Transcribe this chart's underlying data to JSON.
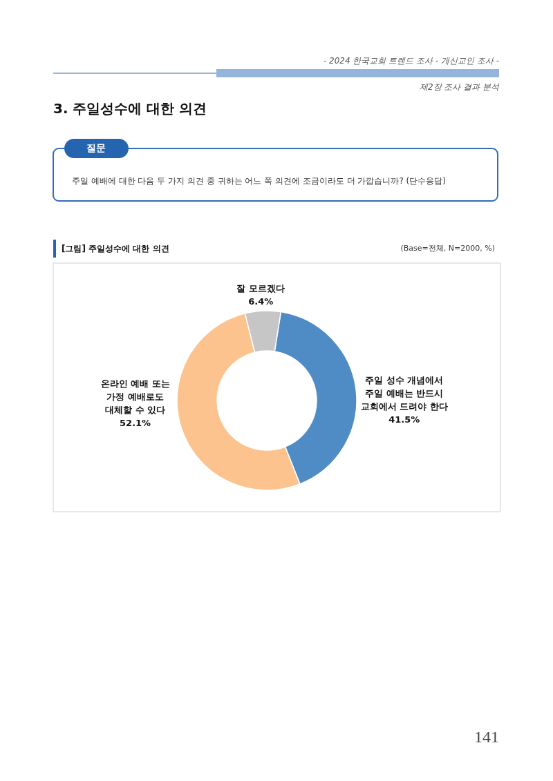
{
  "chart_data": {
    "type": "donut",
    "title": "[그림] 주일성수에 대한 의견",
    "subtitle": "(Base=전체, N=2000, %)",
    "categories": [
      "주일 성수 개념에서\n주일 예배는 반드시\n교회에서 드려야 한다",
      "온라인 예배 또는\n가정 예배로도\n대체할 수 있다",
      "잘 모르겠다"
    ],
    "values": [
      41.5,
      52.1,
      6.4
    ],
    "colors": [
      "#4f8cc5",
      "#fdc38f",
      "#c6c6c6"
    ],
    "value_labels": [
      "41.5%",
      "52.1%",
      "6.4%"
    ],
    "annotations": [
      "- 2024 한국교회 트렌드 조사 - 개신교인 조사 -",
      "제2장 조사 결과 분석",
      "3. 주일성수에 대한 의견",
      "질문",
      "주일 예배에 대한 다음 두 가지 의견 중 귀하는 어느 쪽 의견에 조금이라도 더 가깝습니까? (단수응답)",
      "141"
    ]
  }
}
